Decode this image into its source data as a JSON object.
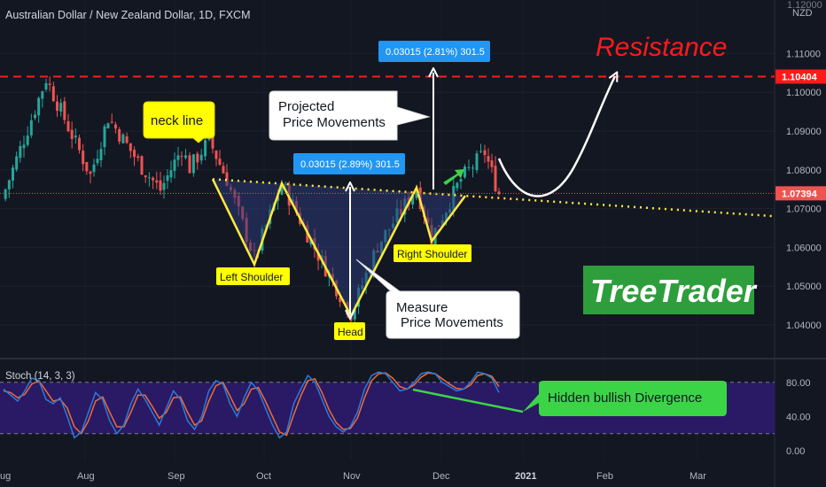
{
  "header": {
    "title": "Australian Dollar / New Zealand Dollar, 1D, FXCM",
    "top_price": "1.12000",
    "currency": "NZD"
  },
  "colors": {
    "background": "#131722",
    "bull": "#26a69a",
    "bear": "#ef5350",
    "pattern_yellow": "#ffeb3b",
    "resistance_red": "#ff1a1a",
    "stoch_band": "#2d1a6b",
    "stoch_k": "#2a7bd8",
    "stoch_d": "#ef6c33",
    "logo_bg": "#2e9e3d",
    "divergence_green": "#3cd447",
    "measure_blue": "#2196f3"
  },
  "chart_data": [
    {
      "type": "candlestick",
      "symbol": "AUD/NZD",
      "interval": "1D",
      "ylim": [
        1.035,
        1.12
      ],
      "x_ticks": [
        "Aug",
        "Sep",
        "Oct",
        "Nov",
        "Dec",
        "2021",
        "Feb",
        "Mar",
        "Apr"
      ],
      "y_ticks": [
        "1.11000",
        "1.10000",
        "1.09000",
        "1.08000",
        "1.07000",
        "1.06000",
        "1.05000",
        "1.04000"
      ],
      "last_price": 1.07394,
      "resistance": 1.10404,
      "swing_path": [
        {
          "label": "start",
          "price": 1.0724
        },
        {
          "label": "Aug high",
          "price": 1.1035
        },
        {
          "label": "",
          "price": 1.0786
        },
        {
          "label": "",
          "price": 1.0935
        },
        {
          "label": "",
          "price": 1.0807
        },
        {
          "label": "",
          "price": 1.0748
        },
        {
          "label": "",
          "price": 1.0855
        },
        {
          "label": "",
          "price": 1.0805
        },
        {
          "label": "neck line start",
          "price": 1.0876
        },
        {
          "label": "",
          "price": 1.0775
        },
        {
          "label": "Left Shoulder",
          "price": 1.0573
        },
        {
          "label": "",
          "price": 1.0765
        },
        {
          "label": "",
          "price": 1.0598
        },
        {
          "label": "Head",
          "price": 1.0428
        },
        {
          "label": "",
          "price": 1.0605
        },
        {
          "label": "",
          "price": 1.0754
        },
        {
          "label": "Right Shoulder",
          "price": 1.0625
        },
        {
          "label": "",
          "price": 1.0776
        },
        {
          "label": "",
          "price": 1.0845
        },
        {
          "label": "last",
          "price": 1.0739
        }
      ],
      "pattern_points": [
        {
          "label": "",
          "price": 1.0776
        },
        {
          "label": "Left Shoulder",
          "price": 1.0556
        },
        {
          "label": "",
          "price": 1.0765
        },
        {
          "label": "Head",
          "price": 1.0423
        },
        {
          "label": "",
          "price": 1.0754
        },
        {
          "label": "Right Shoulder",
          "price": 1.0616
        },
        {
          "label": "",
          "price": 1.0733
        }
      ]
    },
    {
      "type": "line",
      "name": "Stoch (14, 3, 3)",
      "ylim": [
        0,
        100
      ],
      "y_ticks": [
        "80.00",
        "40.00",
        "0.00"
      ],
      "band": [
        20,
        80
      ],
      "series": [
        {
          "name": "%K",
          "values": [
            72,
            65,
            58,
            70,
            85,
            82,
            60,
            55,
            62,
            40,
            15,
            22,
            45,
            68,
            60,
            35,
            20,
            30,
            55,
            72,
            60,
            45,
            30,
            50,
            70,
            60,
            35,
            25,
            40,
            70,
            82,
            78,
            55,
            40,
            62,
            80,
            70,
            50,
            30,
            15,
            22,
            55,
            72,
            88,
            80,
            60,
            40,
            28,
            22,
            28,
            45,
            72,
            88,
            92,
            90,
            80,
            70,
            72,
            80,
            90,
            92,
            90,
            80,
            75,
            70,
            72,
            80,
            92,
            90,
            85,
            68
          ]
        },
        {
          "name": "%D",
          "values": [
            70,
            68,
            62,
            66,
            78,
            82,
            70,
            58,
            60,
            50,
            28,
            20,
            35,
            58,
            63,
            45,
            28,
            28,
            45,
            65,
            65,
            52,
            38,
            45,
            62,
            63,
            45,
            30,
            35,
            58,
            76,
            80,
            64,
            47,
            55,
            72,
            74,
            58,
            40,
            22,
            18,
            42,
            64,
            82,
            84,
            68,
            48,
            33,
            25,
            26,
            38,
            62,
            82,
            90,
            91,
            85,
            75,
            72,
            77,
            86,
            91,
            90,
            84,
            78,
            73,
            72,
            77,
            88,
            90,
            87,
            75
          ]
        }
      ]
    }
  ],
  "annotations": {
    "neck_line": "neck line",
    "left_shoulder": "Left Shoulder",
    "head": "Head",
    "right_shoulder": "Right Shoulder",
    "measure": "0.03015 (2.89%) 301.5",
    "projected": "0.03015 (2.81%) 301.5",
    "projected_note_1": "Projected",
    "projected_note_2": "Price Movements",
    "measure_note_1": "Measure",
    "measure_note_2": "Price Movements",
    "resistance": "Resistance",
    "resistance_price": "1.10404",
    "last_price": "1.07394",
    "logo": "TreeTrader",
    "divergence": "Hidden bullish Divergence",
    "x_first_partial": "ug"
  }
}
